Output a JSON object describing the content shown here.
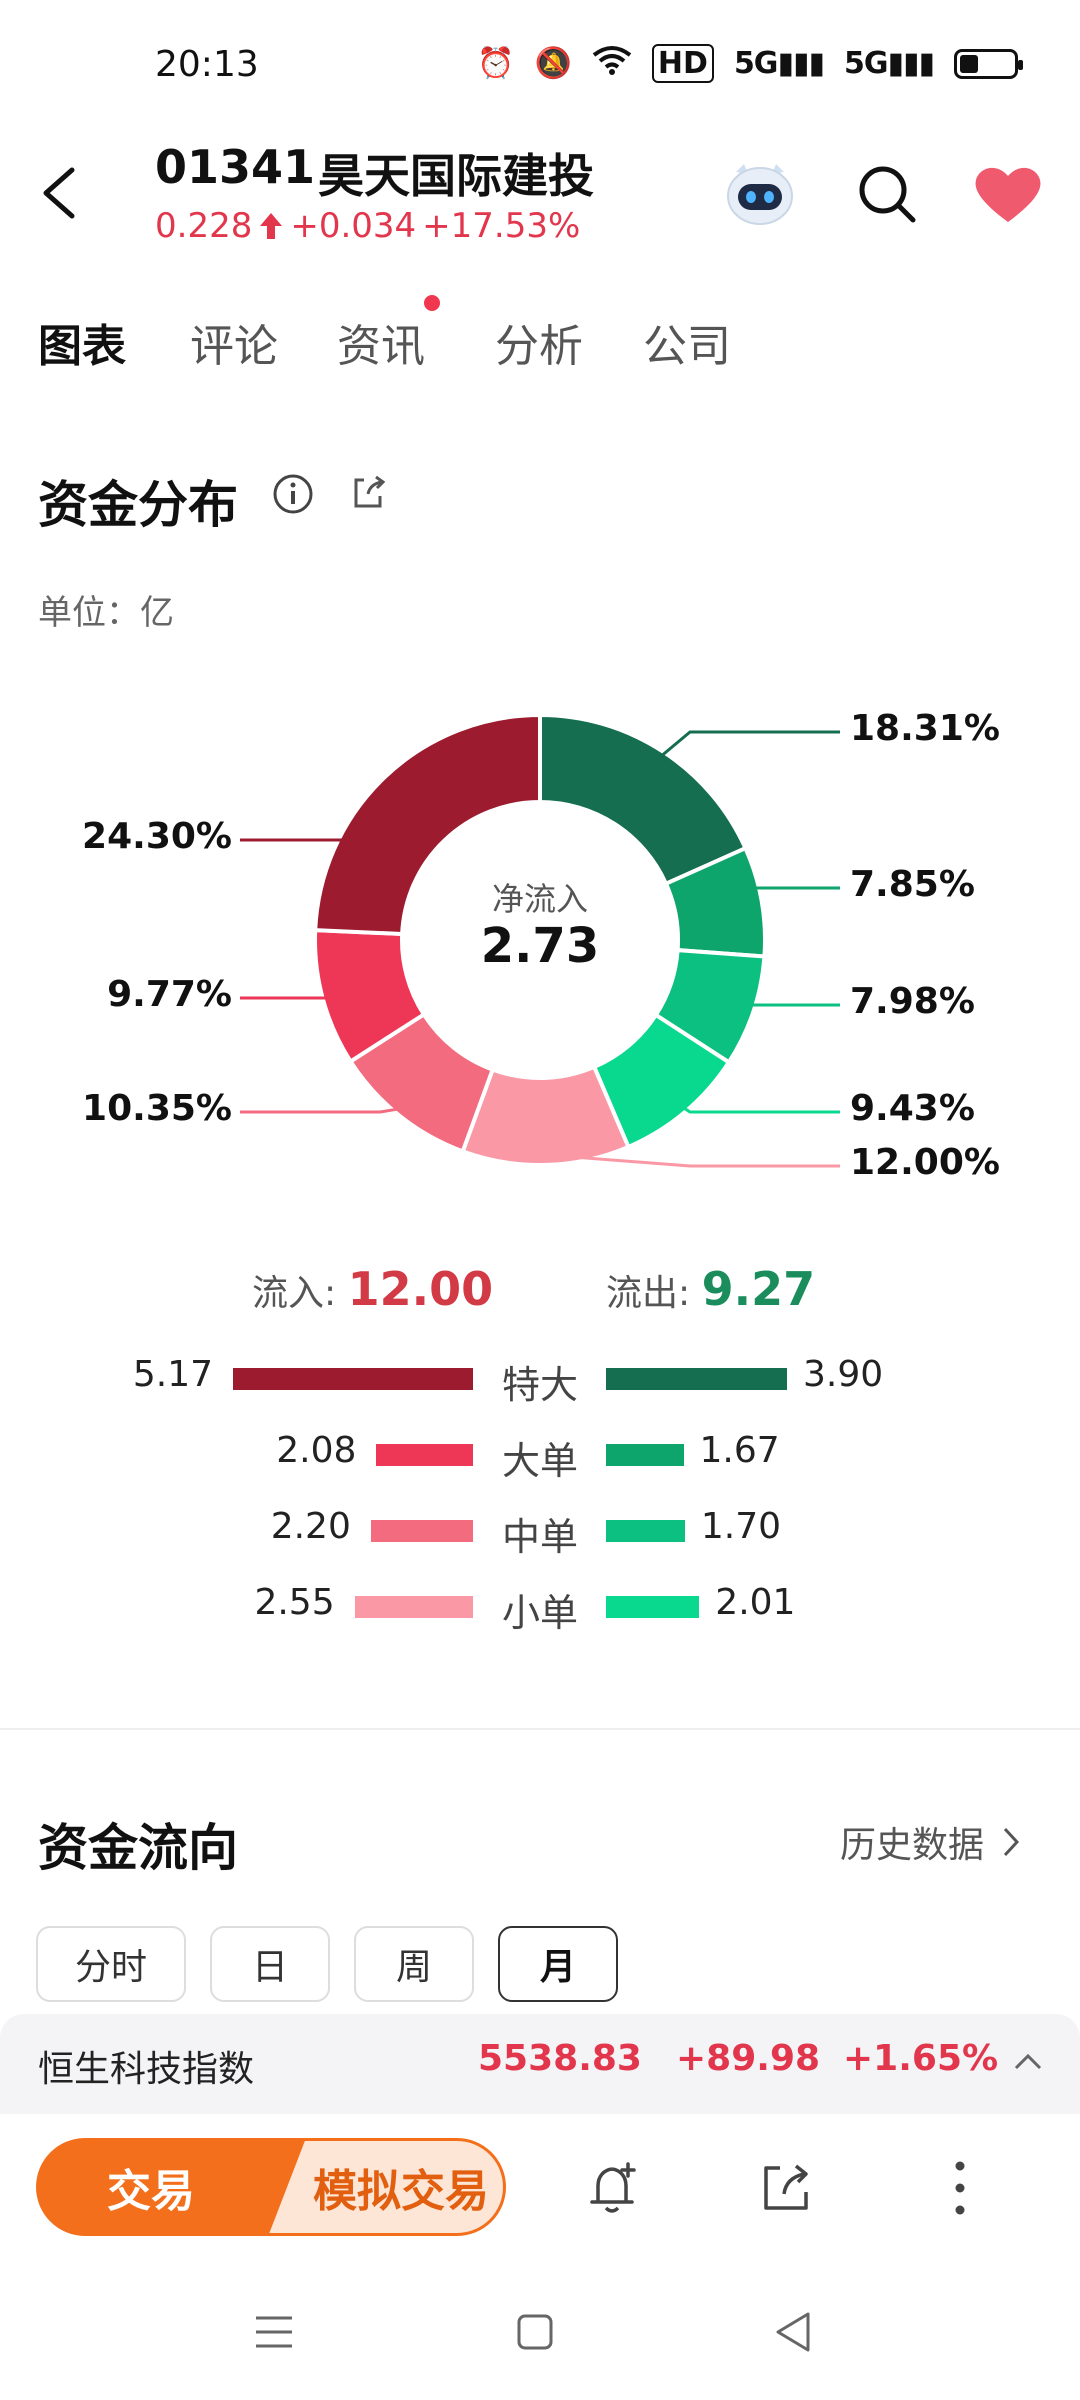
{
  "status_bar": {
    "time": "20:13",
    "hd_label": "HD",
    "signal_label": "5G"
  },
  "header": {
    "stock_code": "01341",
    "stock_name": "昊天国际建投",
    "price": "0.228",
    "change": "+0.034",
    "change_pct": "+17.53%"
  },
  "tabs": [
    {
      "label": "图表",
      "active": true
    },
    {
      "label": "评论",
      "active": false
    },
    {
      "label": "资讯",
      "active": false,
      "dot": true
    },
    {
      "label": "分析",
      "active": false
    },
    {
      "label": "公司",
      "active": false
    }
  ],
  "distribution": {
    "title": "资金分布",
    "unit": "单位：亿",
    "center_label": "净流入",
    "center_value": "2.73"
  },
  "chart_data": {
    "type": "pie",
    "donut": true,
    "slices": [
      {
        "label": "特大流出",
        "value": 18.31,
        "display": "18.31%",
        "color": "#146e4f"
      },
      {
        "label": "大单流出",
        "value": 7.85,
        "display": "7.85%",
        "color": "#0ea56c"
      },
      {
        "label": "中单流出",
        "value": 7.98,
        "display": "7.98%",
        "color": "#0bc080"
      },
      {
        "label": "小单流出",
        "value": 9.43,
        "display": "9.43%",
        "color": "#09d98f"
      },
      {
        "label": "小单流入",
        "value": 12.0,
        "display": "12.00%",
        "color": "#fa98a6"
      },
      {
        "label": "中单流入",
        "value": 10.35,
        "display": "10.35%",
        "color": "#f26b7e"
      },
      {
        "label": "大单流入",
        "value": 9.77,
        "display": "9.77%",
        "color": "#ee3757"
      },
      {
        "label": "特大流入",
        "value": 24.3,
        "display": "24.30%",
        "color": "#9c1b2f"
      }
    ]
  },
  "flow_summary": {
    "inflow_label": "流入:",
    "inflow_value": "12.00",
    "outflow_label": "流出:",
    "outflow_value": "9.27"
  },
  "flow_rows": [
    {
      "label": "特大",
      "in": "5.17",
      "out": "3.90",
      "in_color": "#9c1b2f",
      "out_color": "#146e4f"
    },
    {
      "label": "大单",
      "in": "2.08",
      "out": "1.67",
      "in_color": "#ee3757",
      "out_color": "#0ea56c"
    },
    {
      "label": "中单",
      "in": "2.20",
      "out": "1.70",
      "in_color": "#f26b7e",
      "out_color": "#0bc080"
    },
    {
      "label": "小单",
      "in": "2.55",
      "out": "2.01",
      "in_color": "#fa98a6",
      "out_color": "#09d98f"
    }
  ],
  "flow_direction": {
    "title": "资金流向",
    "history_link": "历史数据",
    "periods": [
      {
        "label": "分时",
        "active": false
      },
      {
        "label": "日",
        "active": false
      },
      {
        "label": "周",
        "active": false
      },
      {
        "label": "月",
        "active": true
      }
    ]
  },
  "index_ticker": {
    "name": "恒生科技指数",
    "value": "5538.83",
    "change": "+89.98",
    "change_pct": "+1.65%"
  },
  "action_bar": {
    "trade_label": "交易",
    "sim_trade_label": "模拟交易"
  },
  "colors": {
    "up_red": "#e2364d",
    "down_green": "#1b8c5c",
    "accent_orange": "#f36f1b"
  }
}
